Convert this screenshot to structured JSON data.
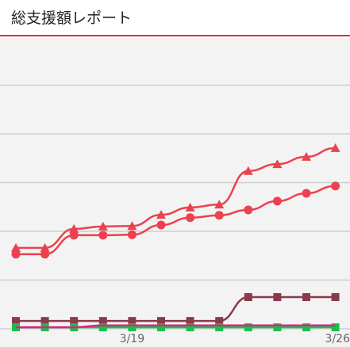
{
  "header": {
    "title": "総支援額レポート"
  },
  "chart_data": {
    "type": "line",
    "categories": [
      null,
      null,
      null,
      null,
      "3/19",
      null,
      null,
      null,
      null,
      null,
      null,
      "3/26"
    ],
    "series": [
      {
        "color": "#e8434f",
        "marker": "triangle",
        "values": [
          1.66,
          1.66,
          2.05,
          2.1,
          2.11,
          2.34,
          2.49,
          2.55,
          3.24,
          3.38,
          3.53,
          3.71
        ]
      },
      {
        "color": "#ee4050",
        "marker": "circle",
        "values": [
          1.53,
          1.53,
          1.92,
          1.92,
          1.93,
          2.13,
          2.28,
          2.33,
          2.44,
          2.62,
          2.78,
          2.93
        ]
      },
      {
        "color": "#8b3a4a",
        "marker": "square",
        "values": [
          0.16,
          0.16,
          0.16,
          0.16,
          0.16,
          0.16,
          0.16,
          0.16,
          0.65,
          0.65,
          0.65,
          0.65
        ]
      },
      {
        "color": "#17c04a",
        "marker": "square",
        "values": [
          0.03,
          0.03,
          0.03,
          0.03,
          0.03,
          0.03,
          0.03,
          0.03,
          0.03,
          0.03,
          0.03,
          0.03
        ]
      },
      {
        "color": "#e0208a",
        "marker": "none",
        "values": [
          0.03,
          0.03,
          0.03,
          0.07,
          0.07,
          0.07,
          0.07,
          0.07,
          0.07,
          0.07,
          0.07,
          0.07
        ]
      }
    ],
    "ylim": [
      -0.374,
      5.935
    ],
    "yticks": [
      0,
      1,
      2,
      3,
      4,
      5
    ],
    "grid": true
  }
}
